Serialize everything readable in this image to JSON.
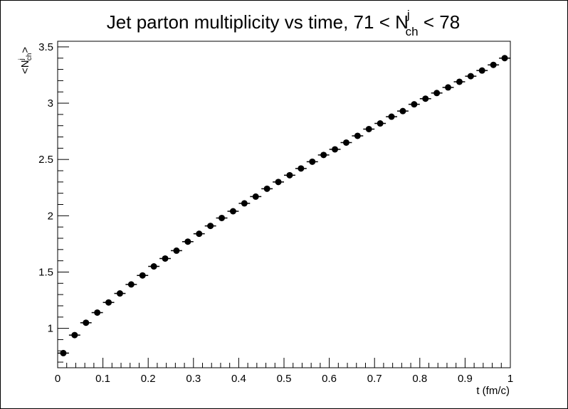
{
  "chart_data": {
    "type": "scatter",
    "title": {
      "main": "Jet parton multiplicity vs time, 71 < N",
      "sup": "j",
      "sub": "ch",
      "tail": " < 78"
    },
    "xlabel": "t (fm/c)",
    "ylabel": {
      "prefix": "<N",
      "sup": "j",
      "sub": "ch",
      "suffix": ">"
    },
    "xlim": [
      0,
      1
    ],
    "ylim": [
      0.65,
      3.55
    ],
    "x_ticks": [
      0,
      0.1,
      0.2,
      0.3,
      0.4,
      0.5,
      0.6,
      0.7,
      0.8,
      0.9,
      1
    ],
    "x_tick_labels": [
      "0",
      "0.1",
      "0.2",
      "0.3",
      "0.4",
      "0.5",
      "0.6",
      "0.7",
      "0.8",
      "0.9",
      "1"
    ],
    "y_ticks": [
      1,
      1.5,
      2,
      2.5,
      3,
      3.5
    ],
    "y_tick_labels": [
      "1",
      "1.5",
      "2",
      "2.5",
      "3",
      "3.5"
    ],
    "grid": false,
    "bin_width": 0.025,
    "series": [
      {
        "x": [
          0.0125,
          0.0375,
          0.0625,
          0.0875,
          0.1125,
          0.1375,
          0.1625,
          0.1875,
          0.2125,
          0.2375,
          0.2625,
          0.2875,
          0.3125,
          0.3375,
          0.3625,
          0.3875,
          0.4125,
          0.4375,
          0.4625,
          0.4875,
          0.5125,
          0.5375,
          0.5625,
          0.5875,
          0.6125,
          0.6375,
          0.6625,
          0.6875,
          0.7125,
          0.7375,
          0.7625,
          0.7875,
          0.8125,
          0.8375,
          0.8625,
          0.8875,
          0.9125,
          0.9375,
          0.9625,
          0.9875
        ],
        "y": [
          0.78,
          0.94,
          1.05,
          1.14,
          1.23,
          1.31,
          1.39,
          1.47,
          1.55,
          1.62,
          1.69,
          1.77,
          1.84,
          1.91,
          1.98,
          2.04,
          2.11,
          2.17,
          2.24,
          2.3,
          2.36,
          2.42,
          2.48,
          2.54,
          2.59,
          2.65,
          2.71,
          2.77,
          2.82,
          2.88,
          2.93,
          2.99,
          3.04,
          3.09,
          3.14,
          3.19,
          3.24,
          3.29,
          3.34,
          3.4
        ]
      }
    ],
    "marker_color": "#000000"
  }
}
